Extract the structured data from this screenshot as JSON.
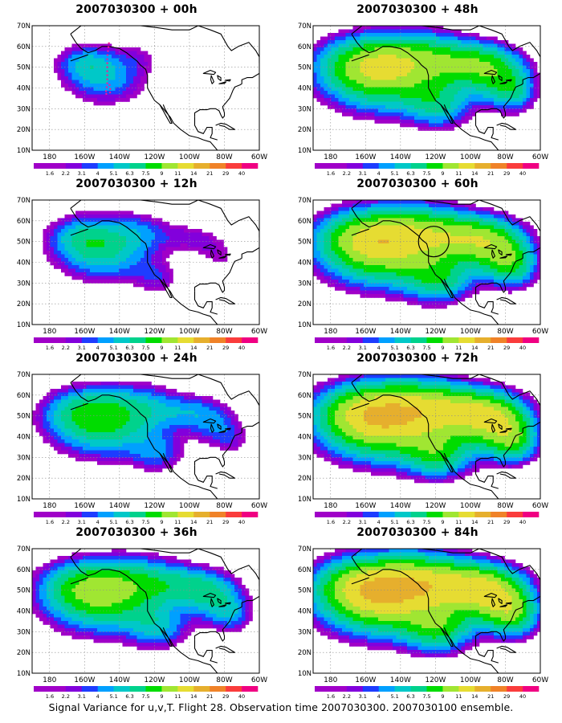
{
  "panels": [
    {
      "title": "2007030300 + 00h",
      "lead_hours": 0,
      "spread": 0.4,
      "intensity": 0.3,
      "flight_track": true,
      "circle_marker": false
    },
    {
      "title": "2007030300 + 12h",
      "lead_hours": 12,
      "spread": 0.62,
      "intensity": 0.38,
      "flight_track": false,
      "circle_marker": false
    },
    {
      "title": "2007030300 + 24h",
      "lead_hours": 24,
      "spread": 0.75,
      "intensity": 0.46,
      "flight_track": false,
      "circle_marker": false
    },
    {
      "title": "2007030300 + 36h",
      "lead_hours": 36,
      "spread": 0.85,
      "intensity": 0.56,
      "flight_track": false,
      "circle_marker": false
    },
    {
      "title": "2007030300 + 48h",
      "lead_hours": 48,
      "spread": 0.93,
      "intensity": 0.66,
      "flight_track": false,
      "circle_marker": false
    },
    {
      "title": "2007030300 + 60h",
      "lead_hours": 60,
      "spread": 0.97,
      "intensity": 0.74,
      "flight_track": false,
      "circle_marker": true
    },
    {
      "title": "2007030300 + 72h",
      "lead_hours": 72,
      "spread": 1.0,
      "intensity": 0.82,
      "flight_track": false,
      "circle_marker": false
    },
    {
      "title": "2007030300 + 84h",
      "lead_hours": 84,
      "spread": 1.0,
      "intensity": 0.86,
      "flight_track": false,
      "circle_marker": false
    }
  ],
  "lat_labels": [
    "70N",
    "60N",
    "50N",
    "40N",
    "30N",
    "20N",
    "10N"
  ],
  "lon_labels": [
    "180",
    "160W",
    "140W",
    "120W",
    "100W",
    "80W",
    "60W"
  ],
  "colorbar": {
    "labels": [
      "1.6",
      "2.2",
      "3.1",
      "4",
      "5.1",
      "6.3",
      "7.5",
      "9",
      "11",
      "14",
      "21",
      "29",
      "40"
    ],
    "colors": [
      "#a000c8",
      "#8200dc",
      "#1e3cff",
      "#00a0ff",
      "#00c8c8",
      "#00d28c",
      "#00dc00",
      "#a0e632",
      "#e6dc32",
      "#e6af2d",
      "#f08228",
      "#fa3c3c",
      "#f00082"
    ]
  },
  "caption": "Signal Variance for u,v,T. Flight 28. Observation time 2007030300. 2007030100 ensemble."
}
